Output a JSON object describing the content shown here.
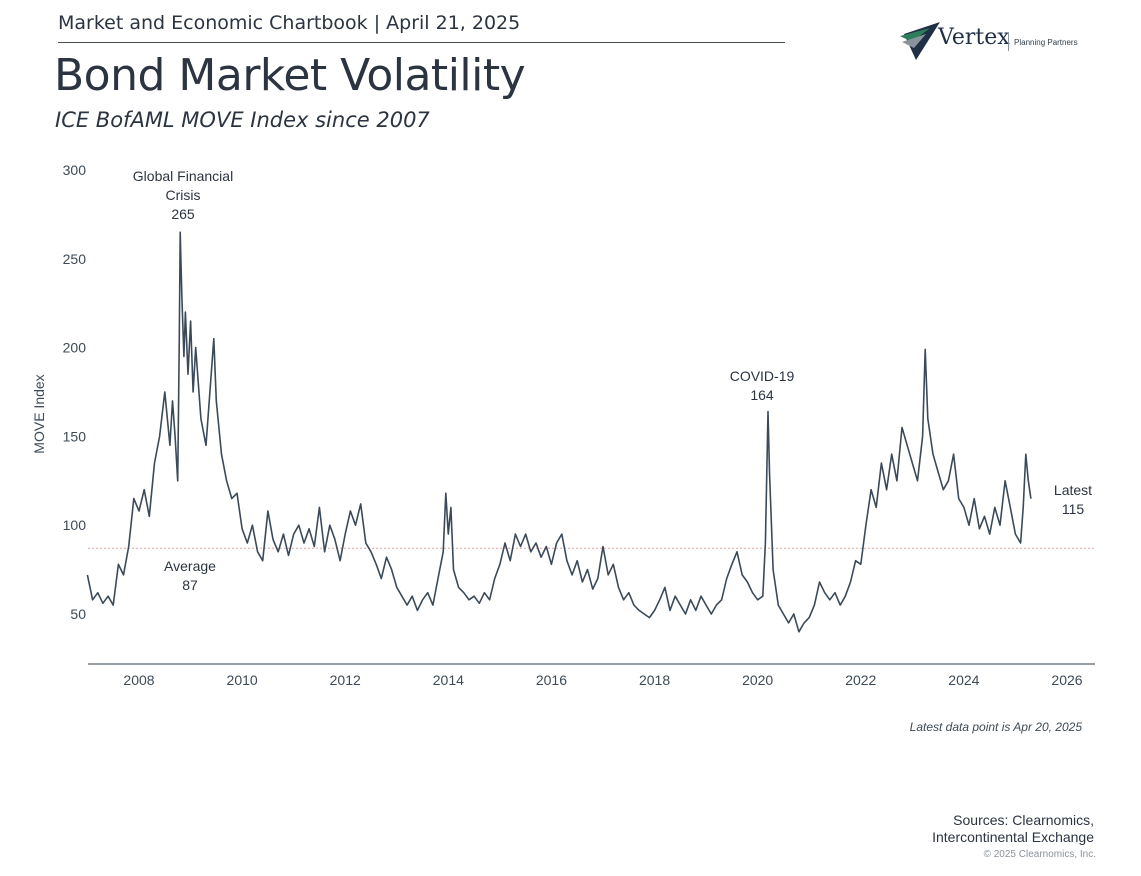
{
  "header": {
    "text": "Market and Economic Chartbook | April 21, 2025"
  },
  "title": "Bond Market Volatility",
  "subtitle": "ICE BofAML MOVE Index since 2007",
  "logo": {
    "name": "Vertex",
    "tagline": "Planning Partners",
    "icon": "chevron-stripes-logo-icon",
    "colors": [
      "#1f2f44",
      "#2e7d5b",
      "#8a939c"
    ]
  },
  "footer": {
    "note": "Latest data point is Apr 20, 2025",
    "sources_line1": "Sources: Clearnomics,",
    "sources_line2": "Intercontinental Exchange",
    "copyright": "© 2025 Clearnomics, Inc."
  },
  "chart_data": {
    "type": "line",
    "ylabel": "MOVE Index",
    "ylim": [
      20,
      300
    ],
    "yticks": [
      50,
      100,
      150,
      200,
      250,
      300
    ],
    "xlim": [
      2007.0,
      2026.3
    ],
    "xticks": [
      2008,
      2010,
      2012,
      2014,
      2016,
      2018,
      2020,
      2022,
      2024,
      2026
    ],
    "line_color": "#3b4a59",
    "average": {
      "value": 87,
      "color": "#e0a3a3"
    },
    "annotations": [
      {
        "lines": [
          "Global Financial",
          "Crisis",
          "265"
        ],
        "x": 2008.8,
        "y": 265
      },
      {
        "lines": [
          "COVID-19",
          "164"
        ],
        "x": 2020.2,
        "y": 164
      },
      {
        "lines": [
          "Average",
          "87"
        ],
        "x": 2008.5,
        "y": 87
      },
      {
        "lines": [
          "Latest",
          "115"
        ],
        "x": 2025.3,
        "y": 115
      }
    ],
    "series": [
      {
        "points": [
          [
            2007.0,
            72
          ],
          [
            2007.1,
            58
          ],
          [
            2007.2,
            62
          ],
          [
            2007.3,
            56
          ],
          [
            2007.4,
            60
          ],
          [
            2007.5,
            55
          ],
          [
            2007.6,
            78
          ],
          [
            2007.7,
            72
          ],
          [
            2007.8,
            88
          ],
          [
            2007.9,
            115
          ],
          [
            2008.0,
            108
          ],
          [
            2008.1,
            120
          ],
          [
            2008.2,
            105
          ],
          [
            2008.3,
            135
          ],
          [
            2008.4,
            150
          ],
          [
            2008.5,
            175
          ],
          [
            2008.6,
            145
          ],
          [
            2008.65,
            170
          ],
          [
            2008.7,
            150
          ],
          [
            2008.75,
            125
          ],
          [
            2008.78,
            200
          ],
          [
            2008.8,
            265
          ],
          [
            2008.83,
            230
          ],
          [
            2008.87,
            195
          ],
          [
            2008.9,
            220
          ],
          [
            2008.95,
            185
          ],
          [
            2009.0,
            215
          ],
          [
            2009.05,
            175
          ],
          [
            2009.1,
            200
          ],
          [
            2009.2,
            160
          ],
          [
            2009.3,
            145
          ],
          [
            2009.4,
            185
          ],
          [
            2009.45,
            205
          ],
          [
            2009.5,
            170
          ],
          [
            2009.6,
            140
          ],
          [
            2009.7,
            125
          ],
          [
            2009.8,
            115
          ],
          [
            2009.9,
            118
          ],
          [
            2010.0,
            98
          ],
          [
            2010.1,
            90
          ],
          [
            2010.2,
            100
          ],
          [
            2010.3,
            85
          ],
          [
            2010.4,
            80
          ],
          [
            2010.5,
            108
          ],
          [
            2010.6,
            92
          ],
          [
            2010.7,
            85
          ],
          [
            2010.8,
            95
          ],
          [
            2010.9,
            83
          ],
          [
            2011.0,
            95
          ],
          [
            2011.1,
            100
          ],
          [
            2011.2,
            90
          ],
          [
            2011.3,
            98
          ],
          [
            2011.4,
            88
          ],
          [
            2011.5,
            110
          ],
          [
            2011.6,
            85
          ],
          [
            2011.7,
            100
          ],
          [
            2011.8,
            92
          ],
          [
            2011.9,
            80
          ],
          [
            2012.0,
            95
          ],
          [
            2012.1,
            108
          ],
          [
            2012.2,
            100
          ],
          [
            2012.3,
            112
          ],
          [
            2012.4,
            90
          ],
          [
            2012.5,
            85
          ],
          [
            2012.6,
            78
          ],
          [
            2012.7,
            70
          ],
          [
            2012.8,
            82
          ],
          [
            2012.9,
            75
          ],
          [
            2013.0,
            65
          ],
          [
            2013.1,
            60
          ],
          [
            2013.2,
            55
          ],
          [
            2013.3,
            60
          ],
          [
            2013.4,
            52
          ],
          [
            2013.5,
            58
          ],
          [
            2013.6,
            62
          ],
          [
            2013.7,
            55
          ],
          [
            2013.8,
            70
          ],
          [
            2013.9,
            85
          ],
          [
            2013.95,
            118
          ],
          [
            2014.0,
            95
          ],
          [
            2014.05,
            110
          ],
          [
            2014.1,
            75
          ],
          [
            2014.2,
            65
          ],
          [
            2014.3,
            62
          ],
          [
            2014.4,
            58
          ],
          [
            2014.5,
            60
          ],
          [
            2014.6,
            56
          ],
          [
            2014.7,
            62
          ],
          [
            2014.8,
            58
          ],
          [
            2014.9,
            70
          ],
          [
            2015.0,
            78
          ],
          [
            2015.1,
            90
          ],
          [
            2015.2,
            80
          ],
          [
            2015.3,
            95
          ],
          [
            2015.4,
            88
          ],
          [
            2015.5,
            95
          ],
          [
            2015.6,
            85
          ],
          [
            2015.7,
            90
          ],
          [
            2015.8,
            82
          ],
          [
            2015.9,
            88
          ],
          [
            2016.0,
            78
          ],
          [
            2016.1,
            90
          ],
          [
            2016.2,
            95
          ],
          [
            2016.3,
            80
          ],
          [
            2016.4,
            72
          ],
          [
            2016.5,
            80
          ],
          [
            2016.6,
            68
          ],
          [
            2016.7,
            75
          ],
          [
            2016.8,
            64
          ],
          [
            2016.9,
            70
          ],
          [
            2017.0,
            88
          ],
          [
            2017.1,
            72
          ],
          [
            2017.2,
            78
          ],
          [
            2017.3,
            65
          ],
          [
            2017.4,
            58
          ],
          [
            2017.5,
            62
          ],
          [
            2017.6,
            55
          ],
          [
            2017.7,
            52
          ],
          [
            2017.8,
            50
          ],
          [
            2017.9,
            48
          ],
          [
            2018.0,
            52
          ],
          [
            2018.1,
            58
          ],
          [
            2018.2,
            65
          ],
          [
            2018.3,
            52
          ],
          [
            2018.4,
            60
          ],
          [
            2018.5,
            55
          ],
          [
            2018.6,
            50
          ],
          [
            2018.7,
            58
          ],
          [
            2018.8,
            52
          ],
          [
            2018.9,
            60
          ],
          [
            2019.0,
            55
          ],
          [
            2019.1,
            50
          ],
          [
            2019.2,
            55
          ],
          [
            2019.3,
            58
          ],
          [
            2019.4,
            70
          ],
          [
            2019.5,
            78
          ],
          [
            2019.6,
            85
          ],
          [
            2019.7,
            72
          ],
          [
            2019.8,
            68
          ],
          [
            2019.9,
            62
          ],
          [
            2020.0,
            58
          ],
          [
            2020.1,
            60
          ],
          [
            2020.15,
            90
          ],
          [
            2020.2,
            164
          ],
          [
            2020.23,
            130
          ],
          [
            2020.3,
            75
          ],
          [
            2020.4,
            55
          ],
          [
            2020.5,
            50
          ],
          [
            2020.6,
            45
          ],
          [
            2020.7,
            50
          ],
          [
            2020.8,
            40
          ],
          [
            2020.9,
            45
          ],
          [
            2021.0,
            48
          ],
          [
            2021.1,
            55
          ],
          [
            2021.2,
            68
          ],
          [
            2021.3,
            62
          ],
          [
            2021.4,
            58
          ],
          [
            2021.5,
            62
          ],
          [
            2021.6,
            55
          ],
          [
            2021.7,
            60
          ],
          [
            2021.8,
            68
          ],
          [
            2021.9,
            80
          ],
          [
            2022.0,
            78
          ],
          [
            2022.1,
            100
          ],
          [
            2022.2,
            120
          ],
          [
            2022.3,
            110
          ],
          [
            2022.4,
            135
          ],
          [
            2022.5,
            120
          ],
          [
            2022.6,
            140
          ],
          [
            2022.7,
            125
          ],
          [
            2022.8,
            155
          ],
          [
            2022.9,
            145
          ],
          [
            2023.0,
            135
          ],
          [
            2023.1,
            125
          ],
          [
            2023.2,
            150
          ],
          [
            2023.25,
            199
          ],
          [
            2023.3,
            160
          ],
          [
            2023.4,
            140
          ],
          [
            2023.5,
            130
          ],
          [
            2023.6,
            120
          ],
          [
            2023.7,
            125
          ],
          [
            2023.8,
            140
          ],
          [
            2023.9,
            115
          ],
          [
            2024.0,
            110
          ],
          [
            2024.1,
            100
          ],
          [
            2024.2,
            115
          ],
          [
            2024.3,
            98
          ],
          [
            2024.4,
            105
          ],
          [
            2024.5,
            95
          ],
          [
            2024.6,
            110
          ],
          [
            2024.7,
            100
          ],
          [
            2024.8,
            125
          ],
          [
            2024.9,
            110
          ],
          [
            2025.0,
            95
          ],
          [
            2025.1,
            90
          ],
          [
            2025.15,
            110
          ],
          [
            2025.2,
            140
          ],
          [
            2025.25,
            125
          ],
          [
            2025.3,
            115
          ]
        ]
      }
    ]
  }
}
